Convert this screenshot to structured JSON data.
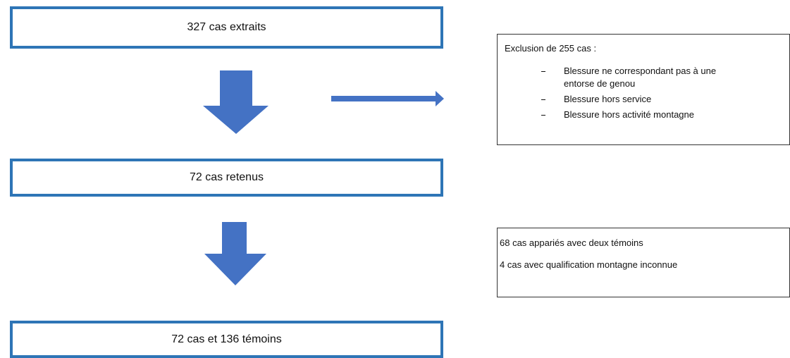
{
  "nodes": [
    {
      "label": "327 cas extraits"
    },
    {
      "label": "72 cas retenus"
    },
    {
      "label": "72 cas et 136 témoins"
    }
  ],
  "exclusion": {
    "title": "Exclusion de 255 cas :",
    "items": [
      "Blessure ne correspondant pas à une entorse de genou",
      "Blessure hors service",
      "Blessure hors activité montagne"
    ]
  },
  "matching": {
    "lines": [
      "68 cas appariés avec deux témoins",
      "4 cas avec qualification montagne inconnue"
    ]
  }
}
